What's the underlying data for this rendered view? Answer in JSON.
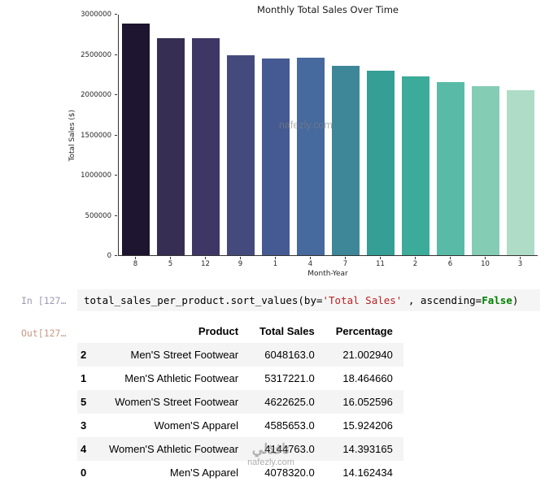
{
  "chart_data": {
    "type": "bar",
    "title": "Monthly Total Sales Over Time",
    "xlabel": "Month-Year",
    "ylabel": "Total Sales ($)",
    "categories": [
      "8",
      "5",
      "12",
      "9",
      "1",
      "4",
      "7",
      "11",
      "2",
      "6",
      "10",
      "3"
    ],
    "values": [
      2880000,
      2700000,
      2700000,
      2480000,
      2440000,
      2450000,
      2350000,
      2290000,
      2220000,
      2150000,
      2100000,
      2050000
    ],
    "ylim": [
      0,
      3000000
    ],
    "yticks": [
      0,
      500000,
      1000000,
      1500000,
      2000000,
      2500000,
      3000000
    ],
    "bar_colors": [
      "#1e1530",
      "#372e53",
      "#3e3766",
      "#454a7d",
      "#455a92",
      "#46699e",
      "#3d8799",
      "#359e95",
      "#3dab9a",
      "#59bba7",
      "#85ccb5",
      "#aedcc6"
    ],
    "grid": false,
    "legend": false
  },
  "notebook": {
    "in_prompt": "In [127…",
    "out_prompt": "Out[127…",
    "code": {
      "part1": "total_sales_per_product.sort_values(by=",
      "string": "'Total Sales'",
      "part2": " , ascending=",
      "keyword": "False",
      "part3": ")"
    }
  },
  "table": {
    "columns": [
      "Product",
      "Total Sales",
      "Percentage"
    ],
    "rows": [
      {
        "index": "2",
        "product": "Men'S Street Footwear",
        "total_sales": "6048163.0",
        "percentage": "21.002940"
      },
      {
        "index": "1",
        "product": "Men'S Athletic Footwear",
        "total_sales": "5317221.0",
        "percentage": "18.464660"
      },
      {
        "index": "5",
        "product": "Women'S Street Footwear",
        "total_sales": "4622625.0",
        "percentage": "16.052596"
      },
      {
        "index": "3",
        "product": "Women'S Apparel",
        "total_sales": "4585653.0",
        "percentage": "15.924206"
      },
      {
        "index": "4",
        "product": "Women'S Athletic Footwear",
        "total_sales": "4144763.0",
        "percentage": "14.393165"
      },
      {
        "index": "0",
        "product": "Men'S Apparel",
        "total_sales": "4078320.0",
        "percentage": "14.162434"
      }
    ]
  },
  "watermark": {
    "chart": "nafezly.com",
    "footer_arabic": "نافذلي",
    "footer": "nafezly.com"
  }
}
